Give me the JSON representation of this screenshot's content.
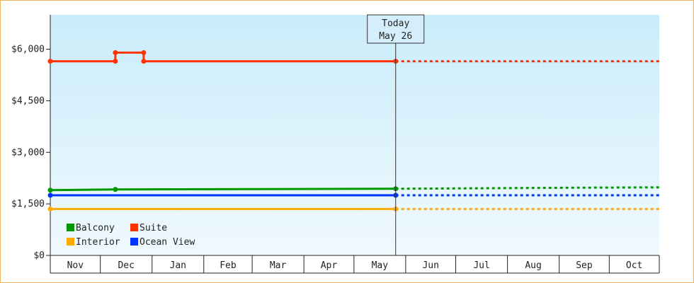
{
  "chart_data": {
    "type": "line",
    "title": "",
    "xlabel": "",
    "ylabel": "",
    "ylim": [
      0,
      7000
    ],
    "y_ticks": [
      0,
      1500,
      3000,
      4500,
      6000
    ],
    "y_tick_labels": [
      "$0",
      "$1,500",
      "$3,000",
      "$4,500",
      "$6,000"
    ],
    "x_months": [
      "Nov",
      "Dec",
      "Jan",
      "Feb",
      "Mar",
      "Apr",
      "May",
      "Jun",
      "Jul",
      "Aug",
      "Sep",
      "Oct"
    ],
    "x_range": [
      "2023-11-01",
      "2024-10-31"
    ],
    "today": {
      "line1": "Today",
      "line2": "May 26",
      "date": "2024-05-26"
    },
    "legend_placement": "bottom-left",
    "series": [
      {
        "name": "Suite",
        "color": "#ff3300",
        "points": [
          {
            "date": "2023-11-01",
            "value": 5650
          },
          {
            "date": "2023-12-10",
            "value": 5650
          },
          {
            "date": "2023-12-10",
            "value": 5900
          },
          {
            "date": "2023-12-27",
            "value": 5900
          },
          {
            "date": "2023-12-27",
            "value": 5650
          },
          {
            "date": "2024-05-26",
            "value": 5650
          }
        ],
        "projection": [
          {
            "date": "2024-05-26",
            "value": 5650
          },
          {
            "date": "2024-10-31",
            "value": 5650
          }
        ]
      },
      {
        "name": "Balcony",
        "color": "#009900",
        "points": [
          {
            "date": "2023-11-01",
            "value": 1900
          },
          {
            "date": "2023-12-10",
            "value": 1920
          },
          {
            "date": "2024-05-26",
            "value": 1940
          }
        ],
        "projection": [
          {
            "date": "2024-05-26",
            "value": 1940
          },
          {
            "date": "2024-07-01",
            "value": 1950
          },
          {
            "date": "2024-09-10",
            "value": 1970
          },
          {
            "date": "2024-10-31",
            "value": 1980
          }
        ]
      },
      {
        "name": "Ocean View",
        "color": "#0033ff",
        "points": [
          {
            "date": "2023-11-01",
            "value": 1750
          },
          {
            "date": "2024-05-26",
            "value": 1750
          }
        ],
        "projection": [
          {
            "date": "2024-05-26",
            "value": 1750
          },
          {
            "date": "2024-10-31",
            "value": 1750
          }
        ]
      },
      {
        "name": "Interior",
        "color": "#ffaa00",
        "points": [
          {
            "date": "2023-11-01",
            "value": 1350
          },
          {
            "date": "2024-05-26",
            "value": 1350
          }
        ],
        "projection": [
          {
            "date": "2024-05-26",
            "value": 1350
          },
          {
            "date": "2024-10-31",
            "value": 1350
          }
        ]
      }
    ],
    "legend_order": [
      "Balcony",
      "Suite",
      "Interior",
      "Ocean View"
    ]
  }
}
